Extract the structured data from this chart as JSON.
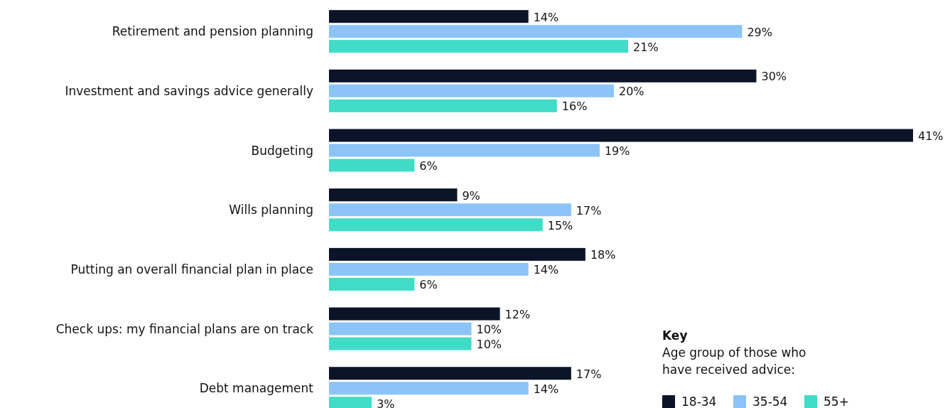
{
  "chart_data": {
    "type": "bar",
    "orientation": "horizontal",
    "categories": [
      "Retirement and pension planning",
      "Investment and savings advice generally",
      "Budgeting",
      "Wills planning",
      "Putting an overall financial plan in place",
      "Check ups: my financial plans are on track",
      "Debt management"
    ],
    "series": [
      {
        "name": "18-34",
        "color": "#0b1428",
        "values": [
          14,
          30,
          41,
          9,
          18,
          12,
          17
        ],
        "value_labels": [
          "14%",
          "30%",
          "41%",
          "9%",
          "18%",
          "12%",
          "17%"
        ]
      },
      {
        "name": "35-54",
        "color": "#8cc4f8",
        "values": [
          29,
          20,
          19,
          17,
          14,
          10,
          14
        ],
        "value_labels": [
          "29%",
          "20%",
          "19%",
          "17%",
          "14%",
          "10%",
          "14%"
        ]
      },
      {
        "name": "55+",
        "color": "#40dcc8",
        "values": [
          21,
          16,
          6,
          15,
          6,
          10,
          3
        ],
        "value_labels": [
          "21%",
          "16%",
          "6%",
          "15%",
          "6%",
          "10%",
          "3%"
        ]
      }
    ],
    "legend": "bottom right",
    "legend_title": "Key\nAge group of those who have received advice:"
  }
}
